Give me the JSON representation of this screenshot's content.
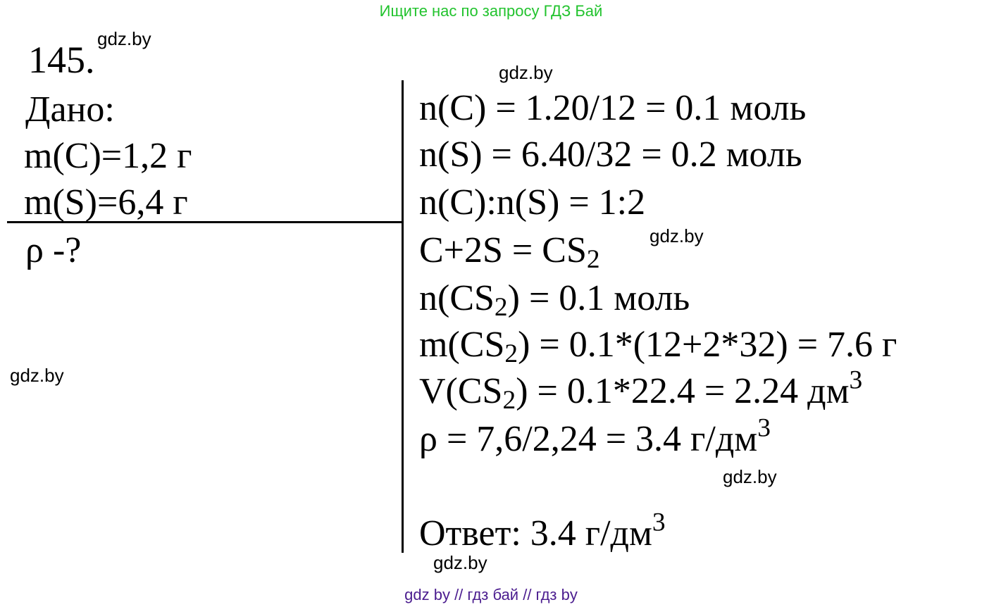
{
  "header": {
    "text": "Ищите нас по запросу ГДЗ Бай"
  },
  "problem_number": "145.",
  "given": {
    "title": "Дано:",
    "lines": [
      "m(C)=1,2 г",
      "m(S)=6,4 г"
    ],
    "find": "ρ -?"
  },
  "solution": {
    "lines": [
      [
        {
          "t": "n(C) = 1.20/12 = 0.1 моль"
        }
      ],
      [
        {
          "t": "n(S) = 6.40/32 = 0.2 моль"
        }
      ],
      [
        {
          "t": "n(C):n(S) = 1:2"
        }
      ],
      [
        {
          "t": "C+2S = CS"
        },
        {
          "t": "2",
          "sub": true
        }
      ],
      [
        {
          "t": "n(CS"
        },
        {
          "t": "2",
          "sub": true
        },
        {
          "t": ") = 0.1 моль"
        }
      ],
      [
        {
          "t": "m(CS"
        },
        {
          "t": "2",
          "sub": true
        },
        {
          "t": ") = 0.1*(12+2*32) = 7.6 г"
        }
      ],
      [
        {
          "t": "V(CS"
        },
        {
          "t": "2",
          "sub": true
        },
        {
          "t": ") = 0.1*22.4 = 2.24 дм"
        },
        {
          "t": "3",
          "sup": true
        }
      ],
      [
        {
          "t": "ρ = 7,6/2,24 = 3.4 г/дм"
        },
        {
          "t": "3",
          "sup": true
        }
      ]
    ],
    "answer": [
      {
        "t": "Ответ: 3.4 г/дм"
      },
      {
        "t": "3",
        "sup": true
      }
    ]
  },
  "watermarks": [
    "gdz.by",
    "gdz.by",
    "gdz.by",
    "gdz.by",
    "gdz.by",
    "gdz.by"
  ],
  "footer": {
    "text": "gdz by  //  гдз бай  //  гдз by"
  },
  "colors": {
    "header": "#22c32e",
    "footer": "#4b1d8f"
  }
}
